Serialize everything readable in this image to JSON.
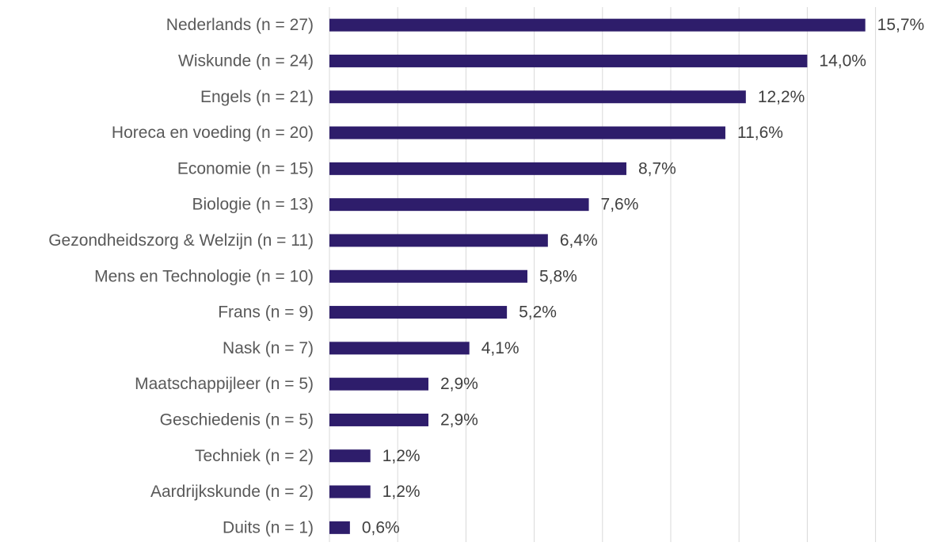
{
  "chart_data": {
    "type": "bar",
    "orientation": "horizontal",
    "categories": [
      "Nederlands (n = 27)",
      "Wiskunde (n = 24)",
      "Engels (n = 21)",
      "Horeca en voeding (n = 20)",
      "Economie (n = 15)",
      "Biologie (n = 13)",
      "Gezondheidszorg & Welzijn (n = 11)",
      "Mens en Technologie (n = 10)",
      "Frans (n = 9)",
      "Nask (n = 7)",
      "Maatschappijleer (n = 5)",
      "Geschiedenis (n = 5)",
      "Techniek (n = 2)",
      "Aardrijkskunde (n = 2)",
      "Duits (n = 1)"
    ],
    "values": [
      15.7,
      14.0,
      12.2,
      11.6,
      8.7,
      7.6,
      6.4,
      5.8,
      5.2,
      4.1,
      2.9,
      2.9,
      1.2,
      1.2,
      0.6
    ],
    "data_labels": [
      "15,7%",
      "14,0%",
      "12,2%",
      "11,6%",
      "8,7%",
      "7,6%",
      "6,4%",
      "5,8%",
      "5,2%",
      "4,1%",
      "2,9%",
      "2,9%",
      "1,2%",
      "1,2%",
      "0,6%"
    ],
    "xlim": [
      0,
      16
    ],
    "grid": true,
    "bar_color": "#2e1d6b",
    "grid_color": "#d9d9d9",
    "label_color": "#595959",
    "value_label_color": "#404040"
  }
}
